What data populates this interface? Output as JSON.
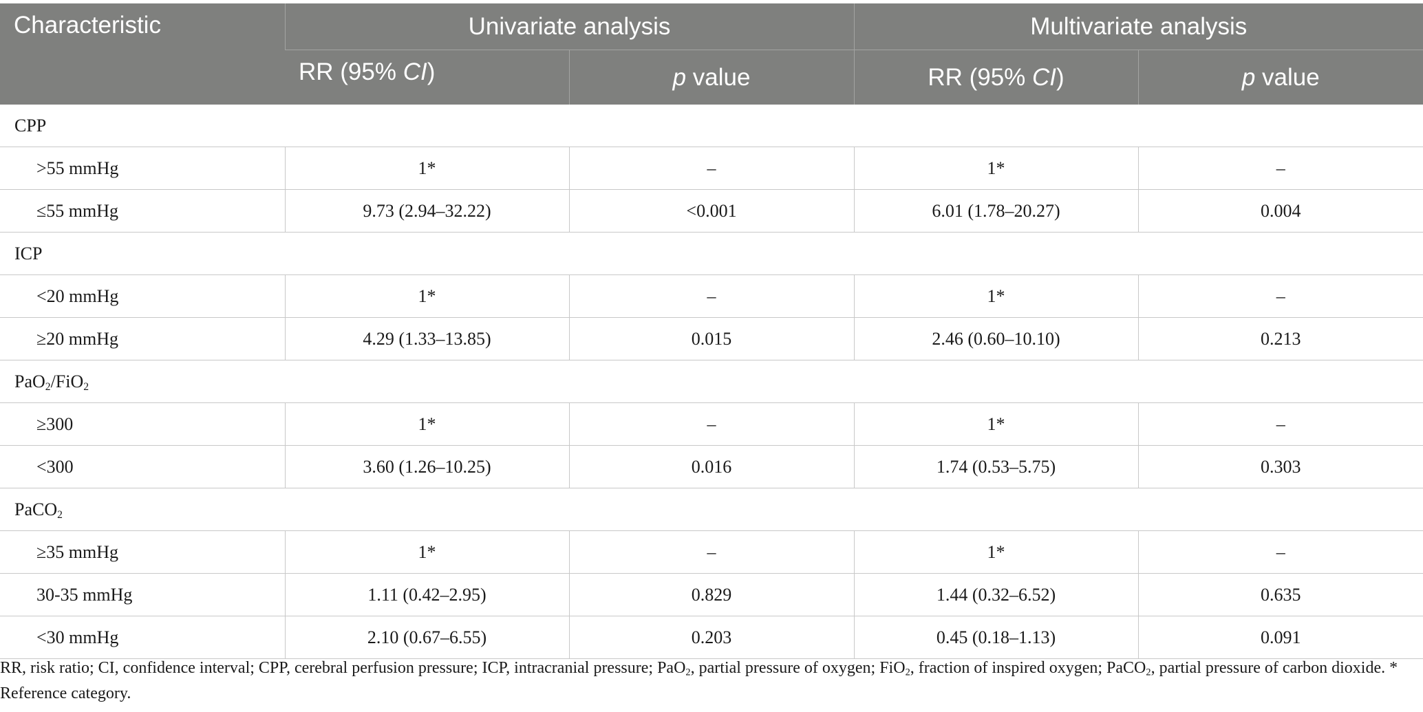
{
  "table": {
    "header": {
      "characteristic": "Characteristic",
      "univariate": "Univariate analysis",
      "multivariate": "Multivariate analysis",
      "rr_prefix": "RR (95% ",
      "rr_ci": "CI",
      "rr_suffix": ")",
      "p_italic": "p",
      "p_suffix": " value"
    },
    "groups": [
      {
        "label": "CPP",
        "rows": [
          {
            "label": ">55 mmHg",
            "uni_rr": "1*",
            "uni_p": "–",
            "multi_rr": "1*",
            "multi_p": "–"
          },
          {
            "label": "≤55 mmHg",
            "uni_rr": "9.73 (2.94–32.22)",
            "uni_p": "<0.001",
            "multi_rr": "6.01 (1.78–20.27)",
            "multi_p": "0.004"
          }
        ]
      },
      {
        "label": "ICP",
        "rows": [
          {
            "label": "<20 mmHg",
            "uni_rr": "1*",
            "uni_p": "–",
            "multi_rr": "1*",
            "multi_p": "–"
          },
          {
            "label": "≥20 mmHg",
            "uni_rr": "4.29 (1.33–13.85)",
            "uni_p": "0.015",
            "multi_rr": "2.46 (0.60–10.10)",
            "multi_p": "0.213"
          }
        ]
      },
      {
        "label_parts": [
          "PaO",
          "2",
          "/FiO",
          "2"
        ],
        "rows": [
          {
            "label": "≥300",
            "uni_rr": "1*",
            "uni_p": "–",
            "multi_rr": "1*",
            "multi_p": "–"
          },
          {
            "label": "<300",
            "uni_rr": "3.60 (1.26–10.25)",
            "uni_p": "0.016",
            "multi_rr": "1.74 (0.53–5.75)",
            "multi_p": "0.303"
          }
        ]
      },
      {
        "label_parts": [
          "PaCO",
          "2"
        ],
        "rows": [
          {
            "label": "≥35 mmHg",
            "uni_rr": "1*",
            "uni_p": "–",
            "multi_rr": "1*",
            "multi_p": "–"
          },
          {
            "label": "30-35 mmHg",
            "uni_rr": "1.11 (0.42–2.95)",
            "uni_p": "0.829",
            "multi_rr": "1.44 (0.32–6.52)",
            "multi_p": "0.635"
          },
          {
            "label": "<30 mmHg",
            "uni_rr": "2.10 (0.67–6.55)",
            "uni_p": "0.203",
            "multi_rr": "0.45 (0.18–1.13)",
            "multi_p": "0.091"
          }
        ]
      }
    ]
  },
  "footnote": {
    "t1": "RR, risk ratio; CI, confidence interval; CPP, cerebral perfusion pressure; ICP, intracranial pressure; PaO",
    "s1": "2",
    "t2": ", partial pressure of oxygen; FiO",
    "s2": "2",
    "t3": ", fraction of inspired oxygen; PaCO",
    "s3": "2",
    "t4": ", partial pressure of carbon dioxide. * Reference category."
  }
}
